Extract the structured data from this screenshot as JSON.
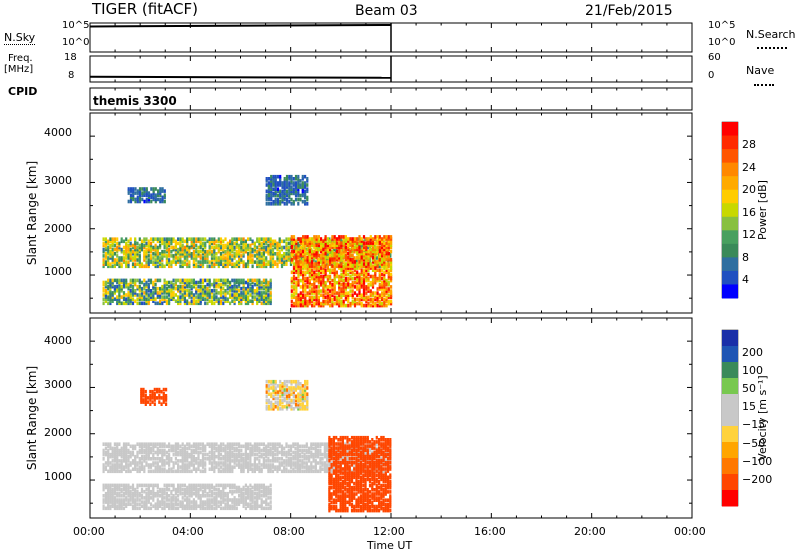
{
  "header": {
    "station": "TIGER (fitACF)",
    "beam": "Beam 03",
    "date": "21/Feb/2015"
  },
  "panels": {
    "nsky": {
      "label": "N.Sky",
      "left_ticks": [
        "10^5",
        "10^0"
      ],
      "right_ticks": [
        "10^5",
        "10^0"
      ],
      "right_label": "N.Search"
    },
    "freq": {
      "label_line1": "Freq.",
      "label_line2": "[MHz]",
      "left_ticks": [
        "18",
        "8"
      ],
      "right_ticks": [
        "60",
        "0"
      ],
      "right_label": "Nave"
    },
    "cpid": {
      "label": "CPID",
      "value": "themis 3300"
    }
  },
  "colorbars": {
    "power": {
      "label": "Power [dB]",
      "ticks": [
        "28",
        "24",
        "20",
        "16",
        "12",
        "8",
        "4"
      ],
      "colors": [
        "#ff0000",
        "#ff2a00",
        "#ff5500",
        "#ff8800",
        "#ffaa00",
        "#ffcc00",
        "#c8d800",
        "#88c040",
        "#48a060",
        "#3a8a5a",
        "#2f6fa0",
        "#2050c0",
        "#0000ff"
      ]
    },
    "velocity": {
      "label": "Velocity [m s⁻¹]",
      "ticks": [
        "200",
        "100",
        "50",
        "15",
        "−15",
        "−50",
        "−100",
        "−200"
      ],
      "colors": [
        "#1a2fa8",
        "#1f55b4",
        "#3a8a5a",
        "#78c850",
        "#c8c8c8",
        "#c8c8c8",
        "#ffd23c",
        "#ffa500",
        "#ff7800",
        "#ff4600",
        "#ff0000"
      ]
    }
  },
  "chart_data": {
    "type": "heatmap",
    "xlabel": "Time UT",
    "x_ticks": [
      "00:00",
      "04:00",
      "08:00",
      "12:00",
      "16:00",
      "20:00",
      "00:00"
    ],
    "xlim_hours": [
      0,
      24
    ],
    "data_end_hour": 12,
    "ylabel": "Slant Range [km]",
    "y_ticks": [
      1000,
      2000,
      3000,
      4000
    ],
    "ylim": [
      180,
      4500
    ],
    "nsky_level": 0.88,
    "freq_level": 0.2,
    "power_bands": [
      {
        "t": [
          0.5,
          12
        ],
        "r": [
          1150,
          1750
        ],
        "v": [
          8,
          22
        ]
      },
      {
        "t": [
          0.5,
          7.2
        ],
        "r": [
          350,
          850
        ],
        "v": [
          5,
          20
        ]
      },
      {
        "t": [
          8,
          12
        ],
        "r": [
          300,
          1800
        ],
        "v": [
          15,
          30
        ]
      },
      {
        "t": [
          7,
          8.7
        ],
        "r": [
          2500,
          3100
        ],
        "v": [
          4,
          10
        ]
      },
      {
        "t": [
          1.5,
          3
        ],
        "r": [
          2550,
          2850
        ],
        "v": [
          4,
          10
        ]
      }
    ],
    "velocity_bands": [
      {
        "t": [
          0.5,
          12
        ],
        "r": [
          1150,
          1750
        ],
        "v": [
          -15,
          15
        ]
      },
      {
        "t": [
          0.5,
          7.2
        ],
        "r": [
          350,
          850
        ],
        "v": [
          -15,
          15
        ]
      },
      {
        "t": [
          9.5,
          12
        ],
        "r": [
          300,
          1900
        ],
        "v": [
          -200,
          -100
        ]
      },
      {
        "t": [
          2,
          3
        ],
        "r": [
          2600,
          2950
        ],
        "v": [
          -200,
          -150
        ]
      },
      {
        "t": [
          7,
          8.7
        ],
        "r": [
          2500,
          3100
        ],
        "v": [
          -60,
          20
        ]
      }
    ]
  }
}
